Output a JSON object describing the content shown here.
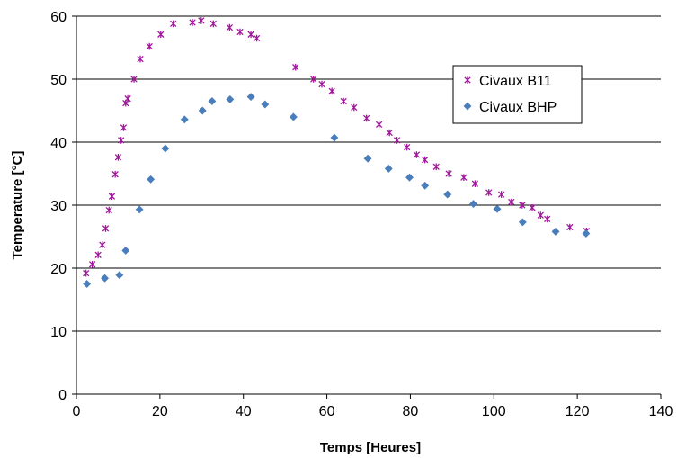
{
  "chart_data": {
    "type": "scatter",
    "title": "",
    "xlabel": "Temps [Heures]",
    "ylabel": "Temperature [°C]",
    "xlim": [
      0,
      140
    ],
    "ylim": [
      0,
      60
    ],
    "xticks": [
      0,
      20,
      40,
      60,
      80,
      100,
      120,
      140
    ],
    "yticks": [
      0,
      10,
      20,
      30,
      40,
      50,
      60
    ],
    "grid": "horizontal",
    "legend_position": "right",
    "series": [
      {
        "name": "Civaux B11",
        "marker": "asterisk",
        "color": "#a0179b",
        "points": [
          [
            2.3,
            19.2
          ],
          [
            3.8,
            20.6
          ],
          [
            5.2,
            22.1
          ],
          [
            6.2,
            23.7
          ],
          [
            7.0,
            26.3
          ],
          [
            7.8,
            29.2
          ],
          [
            8.5,
            31.4
          ],
          [
            9.3,
            34.9
          ],
          [
            10.0,
            37.6
          ],
          [
            10.7,
            40.3
          ],
          [
            11.3,
            42.3
          ],
          [
            11.8,
            46.2
          ],
          [
            12.3,
            46.9
          ],
          [
            13.8,
            50.0
          ],
          [
            15.3,
            53.2
          ],
          [
            17.5,
            55.2
          ],
          [
            20.2,
            57.1
          ],
          [
            23.2,
            58.8
          ],
          [
            27.8,
            59.0
          ],
          [
            29.9,
            59.3
          ],
          [
            32.8,
            58.8
          ],
          [
            36.7,
            58.2
          ],
          [
            39.2,
            57.5
          ],
          [
            41.8,
            57.1
          ],
          [
            43.2,
            56.5
          ],
          [
            52.5,
            51.9
          ],
          [
            56.8,
            50.0
          ],
          [
            58.8,
            49.2
          ],
          [
            61.2,
            48.1
          ],
          [
            64.0,
            46.5
          ],
          [
            66.5,
            45.5
          ],
          [
            69.5,
            43.8
          ],
          [
            72.5,
            42.8
          ],
          [
            75.0,
            41.5
          ],
          [
            76.8,
            40.3
          ],
          [
            79.2,
            39.2
          ],
          [
            81.5,
            38.0
          ],
          [
            83.5,
            37.2
          ],
          [
            86.2,
            36.1
          ],
          [
            89.2,
            35.0
          ],
          [
            92.8,
            34.4
          ],
          [
            95.5,
            33.4
          ],
          [
            98.8,
            32.0
          ],
          [
            101.8,
            31.7
          ],
          [
            104.2,
            30.5
          ],
          [
            106.8,
            30.0
          ],
          [
            109.2,
            29.6
          ],
          [
            111.2,
            28.4
          ],
          [
            112.8,
            27.8
          ],
          [
            118.2,
            26.5
          ],
          [
            122.2,
            25.9
          ]
        ]
      },
      {
        "name": "Civaux BHP",
        "marker": "diamond",
        "color": "#4a7ebb",
        "points": [
          [
            2.5,
            17.5
          ],
          [
            6.8,
            18.4
          ],
          [
            10.3,
            18.9
          ],
          [
            11.8,
            22.8
          ],
          [
            15.1,
            29.3
          ],
          [
            17.8,
            34.1
          ],
          [
            21.3,
            39.0
          ],
          [
            25.9,
            43.6
          ],
          [
            30.2,
            45.0
          ],
          [
            32.5,
            46.5
          ],
          [
            36.8,
            46.8
          ],
          [
            41.8,
            47.2
          ],
          [
            45.2,
            46.0
          ],
          [
            52.0,
            44.0
          ],
          [
            61.8,
            40.7
          ],
          [
            69.8,
            37.4
          ],
          [
            74.8,
            35.8
          ],
          [
            79.8,
            34.4
          ],
          [
            83.5,
            33.1
          ],
          [
            88.9,
            31.7
          ],
          [
            95.1,
            30.2
          ],
          [
            100.8,
            29.4
          ],
          [
            106.9,
            27.3
          ],
          [
            114.8,
            25.8
          ],
          [
            122.1,
            25.5
          ]
        ]
      }
    ]
  }
}
